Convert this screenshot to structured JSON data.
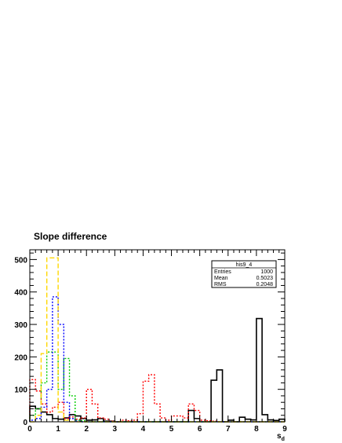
{
  "chart_data": {
    "type": "histogram",
    "title": "Slope difference",
    "xlabel": "s",
    "xlabel_subscript": "d",
    "ylabel": "",
    "xlim": [
      0,
      9
    ],
    "ylim": [
      0,
      530
    ],
    "bin_width": 0.2,
    "x_ticks": [
      "0",
      "1",
      "2",
      "3",
      "4",
      "5",
      "6",
      "7",
      "8",
      "9"
    ],
    "y_ticks": [
      "0",
      "100",
      "200",
      "300",
      "400",
      "500"
    ],
    "grid": false,
    "stats_box": {
      "name": "his9_4",
      "rows": [
        {
          "label": "Entries",
          "value": "1000"
        },
        {
          "label": "Mean",
          "value": "0.5023"
        },
        {
          "label": "RMS",
          "value": "0.2048"
        }
      ]
    },
    "series": [
      {
        "color": "#000000",
        "style": "solid",
        "values": [
          48,
          40,
          30,
          22,
          10,
          8,
          12,
          22,
          18,
          10,
          5,
          6,
          10,
          2,
          2,
          0,
          0,
          0,
          0,
          0,
          0,
          0,
          0,
          0,
          0,
          0,
          0,
          0,
          35,
          10,
          0,
          0,
          128,
          160,
          0,
          5,
          0,
          14,
          8,
          6,
          318,
          22,
          6,
          4,
          8
        ]
      },
      {
        "color": "#ff0000",
        "style": "dotted",
        "values": [
          130,
          95,
          55,
          30,
          45,
          60,
          10,
          15,
          8,
          12,
          100,
          55,
          12,
          8,
          2,
          0,
          5,
          3,
          5,
          25,
          125,
          145,
          55,
          12,
          5,
          18,
          18,
          12,
          55,
          35,
          5,
          3,
          2,
          0,
          0,
          0,
          0,
          0,
          0,
          0,
          0,
          0,
          0,
          0,
          0
        ]
      },
      {
        "color": "#00cc00",
        "style": "dotted",
        "values": [
          20,
          40,
          120,
          215,
          215,
          100,
          195,
          80,
          5,
          3,
          0,
          0,
          0,
          0,
          0,
          0,
          0,
          0,
          0,
          0,
          0,
          0,
          0,
          0,
          0,
          0,
          0,
          0,
          0,
          0,
          0,
          0,
          0,
          0,
          0,
          0,
          0,
          0,
          0,
          0,
          0,
          0,
          0,
          0,
          0
        ]
      },
      {
        "color": "#0000ff",
        "style": "dotted",
        "values": [
          5,
          10,
          45,
          100,
          385,
          300,
          60,
          10,
          2,
          0,
          0,
          0,
          0,
          0,
          0,
          0,
          0,
          0,
          0,
          0,
          0,
          0,
          0,
          0,
          0,
          0,
          0,
          0,
          0,
          0,
          0,
          0,
          0,
          0,
          0,
          0,
          0,
          0,
          0,
          0,
          0,
          0,
          0,
          0,
          0
        ]
      },
      {
        "color": "#ffd700",
        "style": "dashed",
        "values": [
          0,
          20,
          210,
          505,
          505,
          30,
          5,
          0,
          0,
          0,
          0,
          0,
          0,
          0,
          0,
          0,
          0,
          0,
          0,
          0,
          0,
          0,
          0,
          0,
          0,
          0,
          0,
          0,
          0,
          0,
          0,
          0,
          0,
          0,
          0,
          0,
          0,
          0,
          0,
          0,
          0,
          0,
          0,
          0,
          0
        ]
      }
    ]
  }
}
